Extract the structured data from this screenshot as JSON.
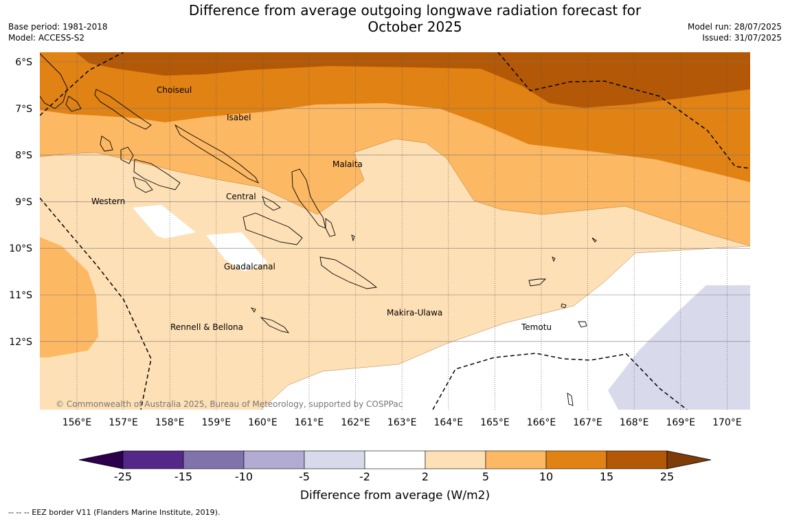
{
  "header": {
    "title_line1": "Difference from average outgoing longwave radiation forecast for",
    "title_line2": "October 2025",
    "base_period": "Base period: 1981-2018",
    "model": "Model: ACCESS-S2",
    "model_run": "Model run: 28/07/2025",
    "issued": "Issued: 31/07/2025"
  },
  "map": {
    "lat_labels": [
      "6°S",
      "7°S",
      "8°S",
      "9°S",
      "10°S",
      "11°S",
      "12°S"
    ],
    "lon_labels": [
      "156°E",
      "157°E",
      "158°E",
      "159°E",
      "160°E",
      "161°E",
      "162°E",
      "163°E",
      "164°E",
      "165°E",
      "166°E",
      "167°E",
      "168°E",
      "169°E",
      "170°E"
    ],
    "provinces": [
      "Choiseul",
      "Isabel",
      "Malaita",
      "Western",
      "Central",
      "Guadalcanal",
      "Makira-Ulawa",
      "Rennell & Bellona",
      "Temotu"
    ],
    "copyright": "© Commonwealth of Australia 2025, Bureau of Meteorology, supported by COSPPac"
  },
  "colorbar": {
    "label": "Difference from average (W/m2)",
    "ticks": [
      "-25",
      "-15",
      "-10",
      "-5",
      "-2",
      "2",
      "5",
      "10",
      "15",
      "25"
    ],
    "colors": {
      "below_min": "#2d004b",
      "c_neg25_neg15": "#542788",
      "c_neg15_neg10": "#8073ac",
      "c_neg10_neg5": "#b2abd2",
      "c_neg5_neg2": "#d8daeb",
      "c_neg2_2": "#ffffff",
      "c_2_5": "#fee0b6",
      "c_5_10": "#fdb863",
      "c_10_15": "#e08214",
      "c_15_25": "#b35806",
      "above_max": "#7f3b08"
    }
  },
  "footer": {
    "legend": "--  --  -- EEZ border V11 (Flanders Marine Institute, 2019)."
  }
}
